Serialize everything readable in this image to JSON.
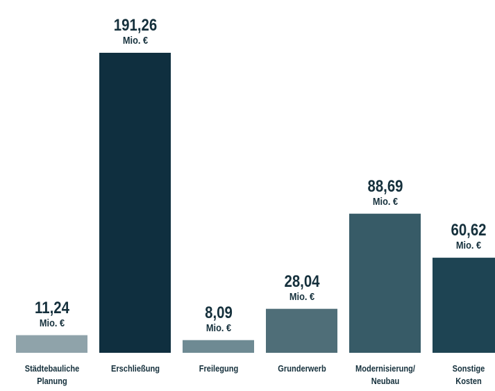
{
  "chart_data": {
    "type": "bar",
    "categories": [
      "Städtebauliche\nPlanung",
      "Erschließung",
      "Freilegung",
      "Grunderwerb",
      "Modernisierung/\nNeubau",
      "Sonstige\nKosten"
    ],
    "values": [
      11.24,
      191.26,
      8.09,
      28.04,
      88.69,
      60.62
    ],
    "value_labels": [
      "11,24\nMio. €",
      "191,26\nMio. €",
      "8,09\nMio. €",
      "28,04\nMio. €",
      "88,69\nMio. €",
      "60,62\nMio. €"
    ],
    "colors": [
      "#8fa3aa",
      "#0f2f3f",
      "#6e8a93",
      "#4f6e78",
      "#375b67",
      "#1e4453"
    ]
  }
}
